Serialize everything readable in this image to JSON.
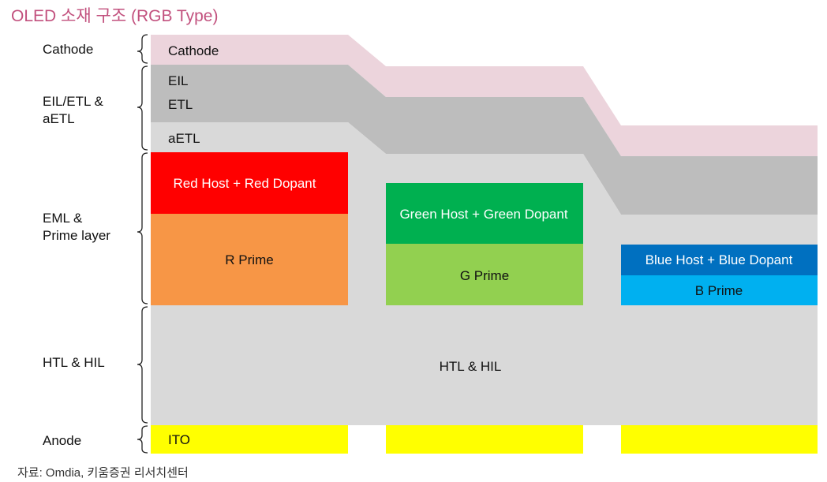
{
  "title": "OLED 소재 구조 (RGB Type)",
  "source": "자료: Omdia, 키움증권 리서치센터",
  "side_labels": {
    "cathode": "Cathode",
    "eil_etl_1": "EIL/ETL &",
    "eil_etl_2": "aETL",
    "eml_1": "EML &",
    "eml_2": "Prime layer",
    "htl": "HTL & HIL",
    "anode": "Anode"
  },
  "layers": {
    "cathode": "Cathode",
    "eil": "EIL",
    "etl": "ETL",
    "aetl": "aETL",
    "red_host": "Red Host + Red Dopant",
    "r_prime": "R Prime",
    "green_host": "Green Host + Green Dopant",
    "g_prime": "G Prime",
    "blue_host": "Blue Host + Blue Dopant",
    "b_prime": "B Prime",
    "htl": "HTL & HIL",
    "ito": "ITO"
  },
  "colors": {
    "title": "#c2517e",
    "cathode": "#ecd4dc",
    "eil_etl": "#bdbdbd",
    "aetl": "#d9d9d9",
    "htl": "#d9d9d9",
    "red_host": "#ff0000",
    "r_prime": "#f79646",
    "green_host": "#00b050",
    "g_prime": "#92d050",
    "blue_host": "#0070c0",
    "b_prime": "#00b0f0",
    "ito": "#ffff00"
  }
}
